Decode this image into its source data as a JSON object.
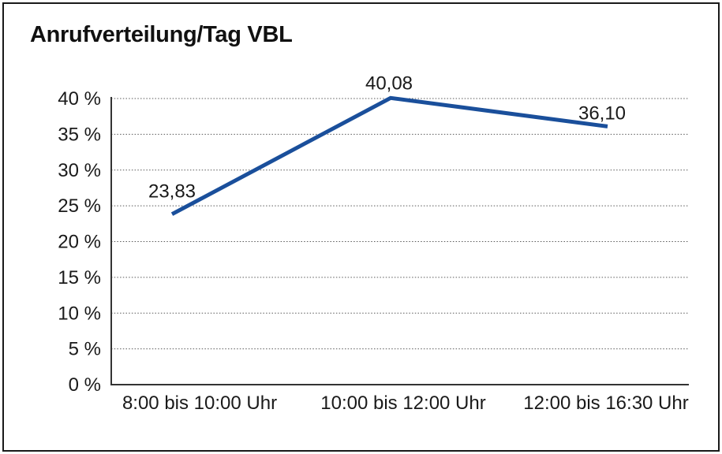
{
  "title": "Anrufverteilung/Tag VBL",
  "colors": {
    "line": "#1A4F9B",
    "grid": "#595959",
    "axis": "#333333",
    "text": "#1A1A1A",
    "frame": "#1A1A1A",
    "background": "#FFFFFF"
  },
  "chart_data": {
    "type": "line",
    "title": "Anrufverteilung/Tag VBL",
    "categories": [
      "8:00 bis 10:00 Uhr",
      "10:00 bis 12:00 Uhr",
      "12:00 bis 16:30 Uhr"
    ],
    "values": [
      23.83,
      40.08,
      36.1
    ],
    "data_labels": [
      "23,83",
      "40,08",
      "36,10"
    ],
    "xlabel": "",
    "ylabel": "",
    "ylim": [
      0,
      40
    ],
    "ytick_step": 5,
    "ytick_labels": [
      "0 %",
      "5 %",
      "10 %",
      "15 %",
      "20 %",
      "25 %",
      "30 %",
      "35 %",
      "40 %"
    ],
    "grid": "horizontal-dotted",
    "legend": "none",
    "line_color": "#1A4F9B"
  }
}
